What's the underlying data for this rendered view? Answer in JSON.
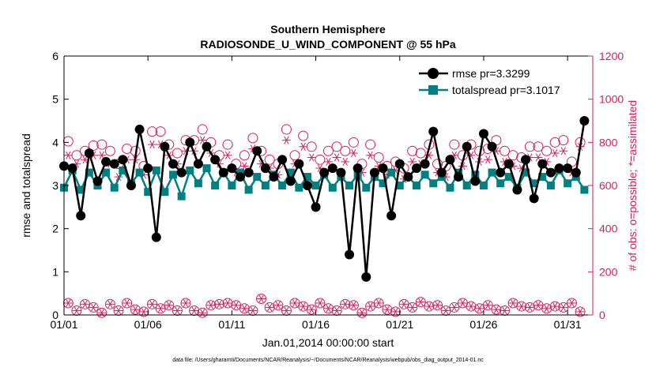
{
  "chart_data": {
    "type": "line",
    "title": "Southern Hemisphere",
    "subtitle": "RADIOSONDE_U_WIND_COMPONENT @ 55 hPa",
    "xlabel": "Jan.01,2014 00:00:00 start",
    "ylabel": "rmse and totalspread",
    "y2label": "# of obs: o=possible; *=assimilated",
    "footnote": "data file: /Users/gharamti/Documents/NCAR/Reanalysis/~/Documents/NCAR/Reanalysis/webpub/obs_diag_output_2014-01.nc",
    "x_unit": "days since Jan.01",
    "xlim": [
      0,
      31.5
    ],
    "ylim": [
      0,
      6
    ],
    "y2lim": [
      0,
      1200
    ],
    "x_ticks": [
      {
        "value": 0,
        "label": "01/01"
      },
      {
        "value": 5,
        "label": "01/06"
      },
      {
        "value": 10,
        "label": "01/11"
      },
      {
        "value": 15,
        "label": "01/16"
      },
      {
        "value": 20,
        "label": "01/21"
      },
      {
        "value": 25,
        "label": "01/26"
      },
      {
        "value": 30,
        "label": "01/31"
      }
    ],
    "y_ticks": [
      0,
      1,
      2,
      3,
      4,
      5,
      6
    ],
    "y2_ticks": [
      0,
      200,
      400,
      600,
      800,
      1000,
      1200
    ],
    "legend_position": "top-right",
    "series": [
      {
        "name": "rmse pr=3.3299",
        "axis": "left",
        "color": "#000000",
        "x": [
          0,
          0.5,
          1,
          1.5,
          2,
          2.5,
          3,
          3.5,
          4,
          4.5,
          5,
          5.5,
          6,
          6.5,
          7,
          7.5,
          8,
          8.5,
          9,
          9.5,
          10,
          10.5,
          11,
          11.5,
          12,
          12.5,
          13,
          13.5,
          14,
          14.5,
          15,
          15.5,
          16,
          16.5,
          17,
          17.5,
          18,
          18.5,
          19,
          19.5,
          20,
          20.5,
          21,
          21.5,
          22,
          22.5,
          23,
          23.5,
          24,
          24.5,
          25,
          25.5,
          26,
          26.5,
          27,
          27.5,
          28,
          28.5,
          29,
          29.5,
          30,
          30.5,
          31
        ],
        "values": [
          3.45,
          3.4,
          2.3,
          3.75,
          3.1,
          3.55,
          3.5,
          3.6,
          3.0,
          4.3,
          3.4,
          1.8,
          3.9,
          3.5,
          3.3,
          4.0,
          3.5,
          3.9,
          3.6,
          3.3,
          3.4,
          3.2,
          3.3,
          3.8,
          3.4,
          3.2,
          3.6,
          3.1,
          3.5,
          3.0,
          2.5,
          3.3,
          3.4,
          3.3,
          1.4,
          3.4,
          0.88,
          3.3,
          3.4,
          2.3,
          3.5,
          3.2,
          3.4,
          3.5,
          4.25,
          3.3,
          3.6,
          3.2,
          3.9,
          3.1,
          4.2,
          3.9,
          3.3,
          3.5,
          2.9,
          3.6,
          2.7,
          3.5,
          3.3,
          3.4,
          3.4,
          3.3,
          4.5
        ]
      },
      {
        "name": "totalspread pr=3.1017",
        "axis": "left",
        "color": "#008080",
        "x": [
          0,
          0.5,
          1,
          1.5,
          2,
          2.5,
          3,
          3.5,
          4,
          4.5,
          5,
          5.5,
          6,
          6.5,
          7,
          7.5,
          8,
          8.5,
          9,
          9.5,
          10,
          10.5,
          11,
          11.5,
          12,
          12.5,
          13,
          13.5,
          14,
          14.5,
          15,
          15.5,
          16,
          16.5,
          17,
          17.5,
          18,
          18.5,
          19,
          19.5,
          20,
          20.5,
          21,
          21.5,
          22,
          22.5,
          23,
          23.5,
          24,
          24.5,
          25,
          25.5,
          26,
          26.5,
          27,
          27.5,
          28,
          28.5,
          29,
          29.5,
          30,
          30.5,
          31
        ],
        "values": [
          2.95,
          3.35,
          2.9,
          3.3,
          3.0,
          3.3,
          2.95,
          3.35,
          3.05,
          3.3,
          2.85,
          3.35,
          2.85,
          3.25,
          2.75,
          3.35,
          3.05,
          3.4,
          3.0,
          3.3,
          3.0,
          3.3,
          2.9,
          3.2,
          3.0,
          3.25,
          3.0,
          3.3,
          2.95,
          3.2,
          3.0,
          3.25,
          2.95,
          3.2,
          3.0,
          3.25,
          2.95,
          3.2,
          3.05,
          3.3,
          3.0,
          3.2,
          3.0,
          3.25,
          3.05,
          3.2,
          2.95,
          3.3,
          3.0,
          3.25,
          3.0,
          3.3,
          3.05,
          3.2,
          2.95,
          3.3,
          3.05,
          3.2,
          3.0,
          3.35,
          3.05,
          3.2,
          2.9
        ]
      },
      {
        "name": "possible obs",
        "axis": "right",
        "color": "#d31f5e",
        "marker": "circle",
        "x": [
          0.25,
          0.75,
          1.25,
          1.75,
          2.25,
          2.75,
          3.25,
          3.75,
          4.25,
          4.75,
          5.25,
          5.75,
          6.25,
          6.75,
          7.25,
          7.75,
          8.25,
          8.75,
          9.25,
          9.75,
          10.25,
          10.75,
          11.25,
          11.75,
          12.25,
          12.75,
          13.25,
          13.75,
          14.25,
          14.75,
          15.25,
          15.75,
          16.25,
          16.75,
          17.25,
          17.75,
          18.25,
          18.75,
          19.25,
          19.75,
          20.25,
          20.75,
          21.25,
          21.75,
          22.25,
          22.75,
          23.25,
          23.75,
          24.25,
          24.75,
          25.25,
          25.75,
          26.25,
          26.75,
          27.25,
          27.75,
          28.25,
          28.75,
          29.25,
          29.75,
          30.25,
          30.75
        ],
        "values": [
          805,
          740,
          760,
          785,
          790,
          760,
          700,
          770,
          760,
          690,
          850,
          850,
          790,
          750,
          810,
          810,
          860,
          800,
          740,
          790,
          700,
          740,
          820,
          760,
          720,
          700,
          860,
          740,
          830,
          780,
          720,
          760,
          780,
          760,
          800,
          700,
          790,
          730,
          690,
          710,
          680,
          760,
          750,
          790,
          700,
          690,
          790,
          740,
          790,
          760,
          770,
          810,
          760,
          740,
          730,
          780,
          780,
          760,
          800,
          810,
          710,
          800
        ]
      },
      {
        "name": "assimilated obs",
        "axis": "right",
        "color": "#d31f5e",
        "marker": "asterisk",
        "x": [
          0.25,
          0.75,
          1.25,
          1.75,
          2.25,
          2.75,
          3.25,
          3.75,
          4.25,
          4.75,
          5.25,
          5.75,
          6.25,
          6.75,
          7.25,
          7.75,
          8.25,
          8.75,
          9.25,
          9.75,
          10.25,
          10.75,
          11.25,
          11.75,
          12.25,
          12.75,
          13.25,
          13.75,
          14.25,
          14.75,
          15.25,
          15.75,
          16.25,
          16.75,
          17.25,
          17.75,
          18.25,
          18.75,
          19.25,
          19.75,
          20.25,
          20.75,
          21.25,
          21.75,
          22.25,
          22.75,
          23.25,
          23.75,
          24.25,
          24.75,
          25.25,
          25.75,
          26.25,
          26.75,
          27.25,
          27.75,
          28.25,
          28.75,
          29.25,
          29.75,
          30.25,
          30.75
        ],
        "values": [
          740,
          700,
          720,
          740,
          740,
          700,
          640,
          720,
          720,
          650,
          790,
          790,
          740,
          700,
          760,
          760,
          810,
          750,
          700,
          740,
          660,
          690,
          770,
          700,
          680,
          650,
          810,
          700,
          780,
          730,
          680,
          710,
          730,
          710,
          750,
          660,
          740,
          690,
          650,
          670,
          630,
          710,
          700,
          740,
          660,
          640,
          740,
          690,
          740,
          710,
          720,
          760,
          710,
          690,
          680,
          730,
          730,
          710,
          750,
          760,
          660,
          780
        ]
      },
      {
        "name": "possible obs (bottom row)",
        "axis": "right",
        "color": "#d31f5e",
        "marker": "circle",
        "x": [
          0.25,
          0.75,
          1.25,
          1.75,
          2.25,
          2.75,
          3.25,
          3.75,
          4.25,
          4.75,
          5.25,
          5.75,
          6.25,
          6.75,
          7.25,
          7.75,
          8.25,
          8.75,
          9.25,
          9.75,
          10.25,
          10.75,
          11.25,
          11.75,
          12.25,
          12.75,
          13.25,
          13.75,
          14.25,
          14.75,
          15.25,
          15.75,
          16.25,
          16.75,
          17.25,
          17.75,
          18.25,
          18.75,
          19.25,
          19.75,
          20.25,
          20.75,
          21.25,
          21.75,
          22.25,
          22.75,
          23.25,
          23.75,
          24.25,
          24.75,
          25.25,
          25.75,
          26.25,
          26.75,
          27.25,
          27.75,
          28.25,
          28.75,
          29.25,
          29.75,
          30.25,
          30.75
        ],
        "values": [
          55,
          20,
          50,
          35,
          10,
          50,
          20,
          55,
          25,
          15,
          50,
          30,
          45,
          20,
          55,
          20,
          10,
          45,
          50,
          55,
          45,
          30,
          20,
          75,
          35,
          45,
          20,
          55,
          40,
          25,
          55,
          30,
          20,
          50,
          45,
          10,
          40,
          55,
          25,
          15,
          50,
          35,
          60,
          40,
          45,
          20,
          35,
          55,
          40,
          30,
          45,
          25,
          20,
          55,
          40,
          35,
          45,
          30,
          40,
          35,
          55,
          15
        ]
      },
      {
        "name": "assimilated obs (bottom row)",
        "axis": "right",
        "color": "#d31f5e",
        "marker": "asterisk",
        "x": [
          0.25,
          0.75,
          1.25,
          1.75,
          2.25,
          2.75,
          3.25,
          3.75,
          4.25,
          4.75,
          5.25,
          5.75,
          6.25,
          6.75,
          7.25,
          7.75,
          8.25,
          8.75,
          9.25,
          9.75,
          10.25,
          10.75,
          11.25,
          11.75,
          12.25,
          12.75,
          13.25,
          13.75,
          14.25,
          14.75,
          15.25,
          15.75,
          16.25,
          16.75,
          17.25,
          17.75,
          18.25,
          18.75,
          19.25,
          19.75,
          20.25,
          20.75,
          21.25,
          21.75,
          22.25,
          22.75,
          23.25,
          23.75,
          24.25,
          24.75,
          25.25,
          25.75,
          26.25,
          26.75,
          27.25,
          27.75,
          28.25,
          28.75,
          29.25,
          29.75,
          30.25,
          30.75
        ],
        "values": [
          55,
          20,
          50,
          35,
          10,
          50,
          20,
          55,
          25,
          15,
          50,
          30,
          45,
          20,
          55,
          20,
          10,
          45,
          50,
          55,
          45,
          30,
          20,
          75,
          35,
          45,
          20,
          55,
          40,
          25,
          55,
          30,
          20,
          50,
          45,
          10,
          40,
          55,
          25,
          15,
          50,
          35,
          60,
          40,
          45,
          20,
          35,
          55,
          40,
          30,
          45,
          25,
          20,
          55,
          40,
          35,
          45,
          30,
          40,
          35,
          55,
          15
        ]
      }
    ]
  }
}
